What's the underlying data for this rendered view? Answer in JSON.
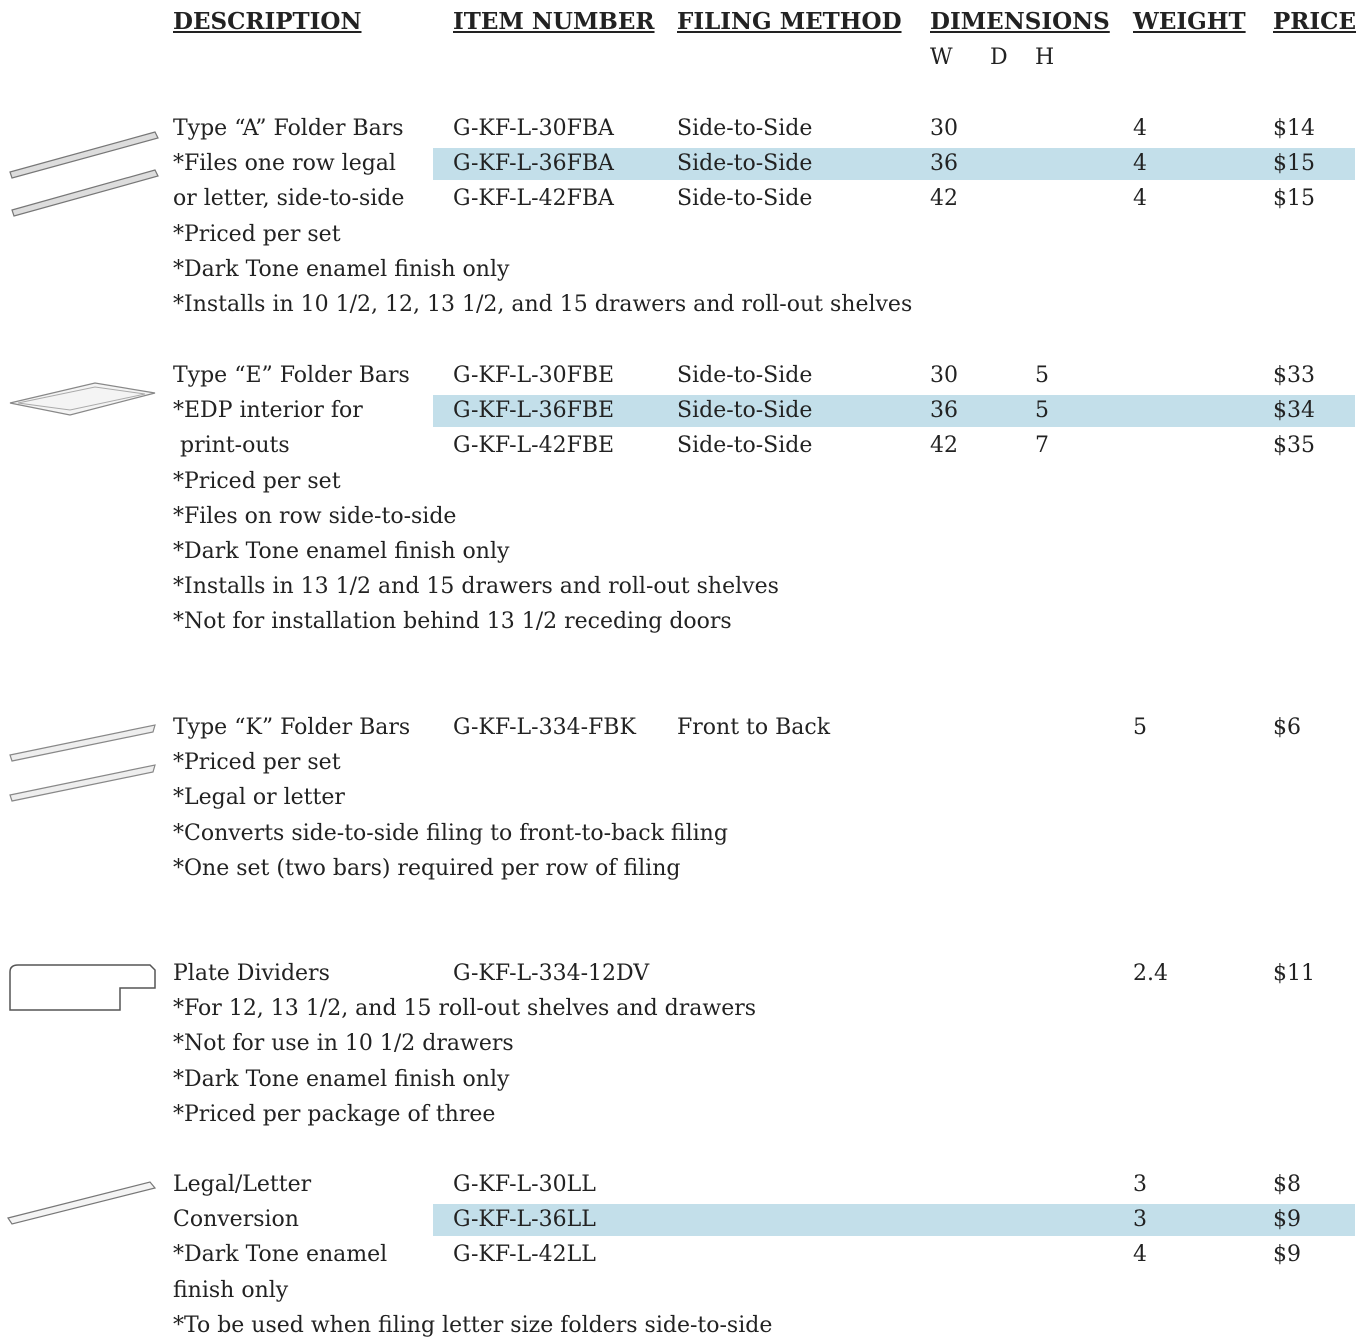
{
  "header": {
    "description": "DESCRIPTION",
    "item_number": "ITEM NUMBER",
    "filing_method": "FILING METHOD",
    "dimensions": "DIMENSIONS",
    "weight": "WEIGHT",
    "price": "PRICE",
    "dims": [
      "W",
      "D",
      "H"
    ]
  },
  "sections": [
    {
      "lines": [
        "Type “A” Folder Bars",
        "*Files one row legal",
        "or letter, side-to-side",
        "*Priced per set",
        "*Dark Tone enamel finish only",
        "*Installs in 10 1/2, 12, 13 1/2, and 15 drawers and roll-out shelves"
      ],
      "rows": [
        {
          "item": "G-KF-L-30FBA",
          "method": "Side-to-Side",
          "w": 30,
          "weight": 4,
          "price": "$14",
          "highlight": false
        },
        {
          "item": "G-KF-L-36FBA",
          "method": "Side-to-Side",
          "w": 36,
          "weight": 4,
          "price": "$15",
          "highlight": true
        },
        {
          "item": "G-KF-L-42FBA",
          "method": "Side-to-Side",
          "w": 42,
          "weight": 4,
          "price": "$15",
          "highlight": false
        }
      ]
    },
    {
      "lines": [
        "Type “E” Folder Bars",
        "*EDP interior for",
        " print-outs",
        "*Priced per set",
        "*Files on row side-to-side",
        "*Dark Tone enamel finish only",
        "*Installs in 13 1/2 and 15 drawers and roll-out shelves",
        "*Not for installation behind 13 1/2 receding doors"
      ],
      "rows": [
        {
          "item": "G-KF-L-30FBE",
          "method": "Side-to-Side",
          "w": 30,
          "h": 5,
          "price": "$33",
          "highlight": false
        },
        {
          "item": "G-KF-L-36FBE",
          "method": "Side-to-Side",
          "w": 36,
          "h": 5,
          "price": "$34",
          "highlight": true
        },
        {
          "item": "G-KF-L-42FBE",
          "method": "Side-to-Side",
          "w": 42,
          "h": 7,
          "price": "$35",
          "highlight": false
        }
      ]
    },
    {
      "lines": [
        "Type “K” Folder Bars",
        "*Priced per set",
        "*Legal or letter",
        "*Converts side-to-side filing to front-to-back filing",
        "*One set (two bars) required per row of filing"
      ],
      "rows": [
        {
          "item": "G-KF-L-334-FBK",
          "method": "Front to Back",
          "weight": 5,
          "price": "$6",
          "highlight": false
        }
      ]
    },
    {
      "lines": [
        "Plate Dividers",
        "*For 12, 13 1/2, and 15 roll-out shelves and drawers",
        "*Not for use in 10 1/2 drawers",
        "*Dark Tone enamel finish only",
        "*Priced per package of three"
      ],
      "rows": [
        {
          "item": "G-KF-L-334-12DV",
          "weight": 2.4,
          "price": "$11",
          "highlight": false
        }
      ]
    },
    {
      "lines": [
        "Legal/Letter",
        "Conversion",
        "*Dark Tone enamel",
        "finish only",
        "*To be used when filing letter size folders side-to-side"
      ],
      "rows": [
        {
          "item": "G-KF-L-30LL",
          "weight": 3,
          "price": "$8",
          "highlight": false
        },
        {
          "item": "G-KF-L-36LL",
          "weight": 3,
          "price": "$9",
          "highlight": true
        },
        {
          "item": "G-KF-L-42LL",
          "weight": 4,
          "price": "$9",
          "highlight": false
        }
      ]
    }
  ]
}
